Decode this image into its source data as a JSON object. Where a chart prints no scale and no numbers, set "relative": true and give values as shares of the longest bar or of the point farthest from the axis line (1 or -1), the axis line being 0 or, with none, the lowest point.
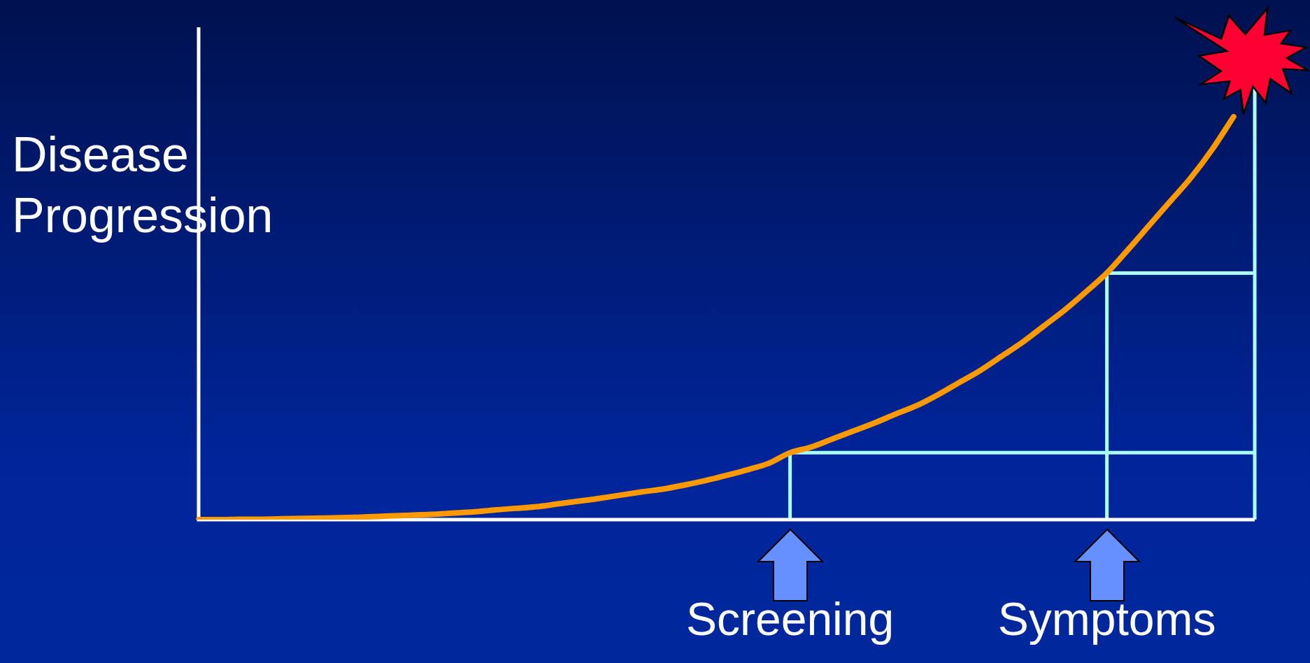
{
  "chart_data": {
    "type": "line",
    "relative": true,
    "ylabel": "Disease Progression",
    "categories": [
      null,
      null,
      null,
      null,
      null,
      null,
      null,
      null,
      null,
      null,
      null,
      null,
      null,
      null,
      null,
      null,
      null,
      null,
      null,
      null,
      null,
      null,
      null,
      null,
      null,
      null,
      null,
      null,
      "Screening",
      null,
      null,
      null,
      null,
      null,
      null,
      null,
      null,
      null,
      null,
      null,
      null,
      null,
      null,
      "Symptoms",
      null,
      null,
      null,
      null,
      null,
      null,
      null
    ],
    "series": [
      {
        "color": "#ff9900",
        "values": [
          0,
          0,
          0.001,
          0.001,
          0.002,
          0.003,
          0.004,
          0.005,
          0.007,
          0.009,
          0.011,
          0.013,
          0.016,
          0.019,
          0.024,
          0.028,
          0.032,
          0.039,
          0.046,
          0.053,
          0.061,
          0.069,
          0.076,
          0.086,
          0.097,
          0.11,
          0.124,
          0.14,
          0.166,
          0.18,
          0.2,
          0.22,
          0.24,
          0.262,
          0.283,
          0.31,
          0.34,
          0.37,
          0.405,
          0.44,
          0.48,
          0.52,
          0.565,
          0.612,
          0.67,
          0.73,
          0.79,
          0.85,
          0.92,
          1.0,
          null
        ]
      }
    ],
    "ref_lines": [
      {
        "axis": "x",
        "value": "Screening",
        "color": "#aaffff"
      },
      {
        "axis": "x",
        "value": "Symptoms",
        "color": "#aaffff"
      },
      {
        "axis": "y",
        "value": 0.166,
        "color": "#aaffff"
      },
      {
        "axis": "y",
        "value": 0.612,
        "color": "#aaffff"
      }
    ],
    "legend": false,
    "marker": "none",
    "line_style": "solid"
  }
}
